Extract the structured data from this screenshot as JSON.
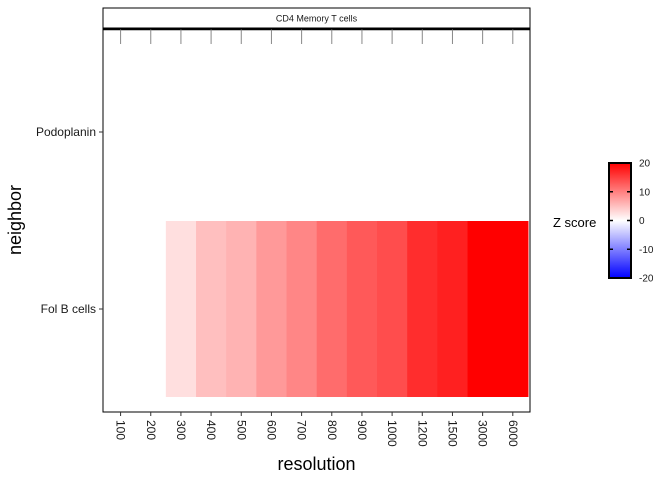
{
  "chart_data": {
    "type": "heatmap",
    "facet_label": "CD4 Memory T cells",
    "xlabel": "resolution",
    "ylabel": "neighbor",
    "x_categories": [
      "100",
      "200",
      "300",
      "400",
      "500",
      "600",
      "700",
      "800",
      "900",
      "1000",
      "1200",
      "1500",
      "3000",
      "6000"
    ],
    "y_categories": [
      "Podoplanin",
      "Fol B cells"
    ],
    "cells": [
      {
        "x": "300",
        "y": "Fol B cells",
        "z": 2.5
      },
      {
        "x": "400",
        "y": "Fol B cells",
        "z": 5
      },
      {
        "x": "500",
        "y": "Fol B cells",
        "z": 6
      },
      {
        "x": "600",
        "y": "Fol B cells",
        "z": 8
      },
      {
        "x": "700",
        "y": "Fol B cells",
        "z": 9.5
      },
      {
        "x": "800",
        "y": "Fol B cells",
        "z": 11.5
      },
      {
        "x": "900",
        "y": "Fol B cells",
        "z": 13
      },
      {
        "x": "1000",
        "y": "Fol B cells",
        "z": 14
      },
      {
        "x": "1200",
        "y": "Fol B cells",
        "z": 16.5
      },
      {
        "x": "1500",
        "y": "Fol B cells",
        "z": 17.5
      },
      {
        "x": "3000",
        "y": "Fol B cells",
        "z": 20
      },
      {
        "x": "6000",
        "y": "Fol B cells",
        "z": 20
      }
    ],
    "legend": {
      "title": "Z score",
      "ticks": [
        "20",
        "10",
        "0",
        "-10",
        "-20"
      ],
      "range": [
        -20,
        20
      ],
      "colors": {
        "low": "#0000ff",
        "mid": "#ffffff",
        "high": "#ff0000"
      }
    }
  }
}
